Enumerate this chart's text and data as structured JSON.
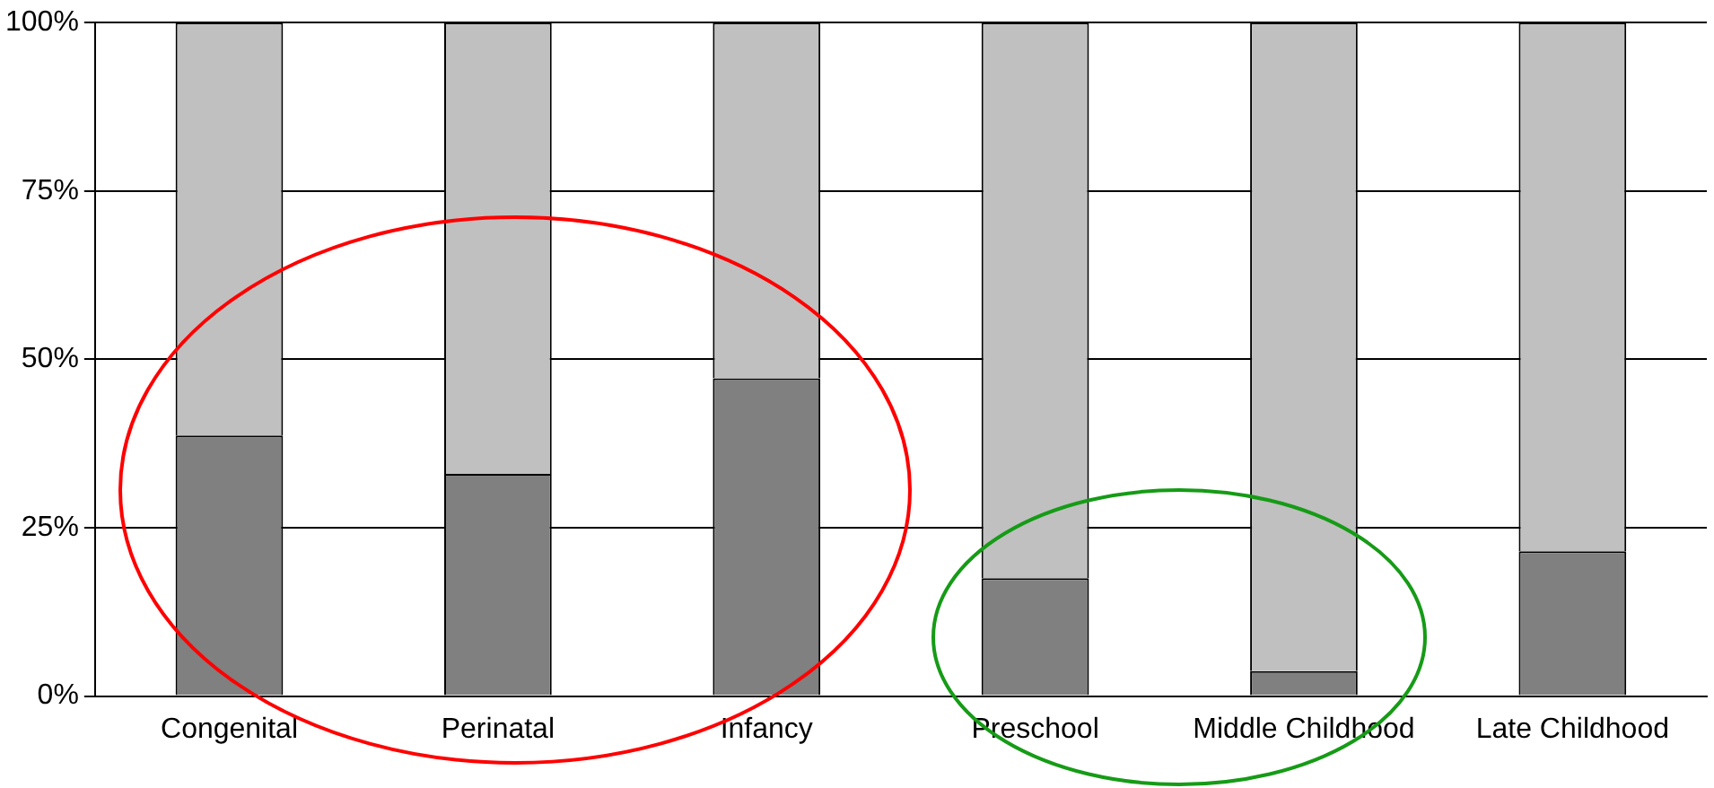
{
  "chart_data": {
    "type": "bar",
    "stacked": true,
    "categories": [
      "Congenital",
      "Perinatal",
      "Infancy",
      "Preschool",
      "Middle Childhood",
      "Late Childhood"
    ],
    "series": [
      {
        "color": "#808080",
        "values": [
          38.7,
          33.0,
          47.2,
          17.5,
          3.7,
          21.5
        ]
      },
      {
        "color": "#c0c0c0",
        "values": [
          61.3,
          67.0,
          52.8,
          82.5,
          96.3,
          78.5
        ]
      }
    ],
    "ylim": [
      0,
      100
    ],
    "yticks": [
      {
        "value": 0,
        "label": "0%"
      },
      {
        "value": 25,
        "label": "25%"
      },
      {
        "value": 50,
        "label": "50%"
      },
      {
        "value": 75,
        "label": "75%"
      },
      {
        "value": 100,
        "label": "100%"
      }
    ],
    "grid": "y",
    "legend": false
  }
}
